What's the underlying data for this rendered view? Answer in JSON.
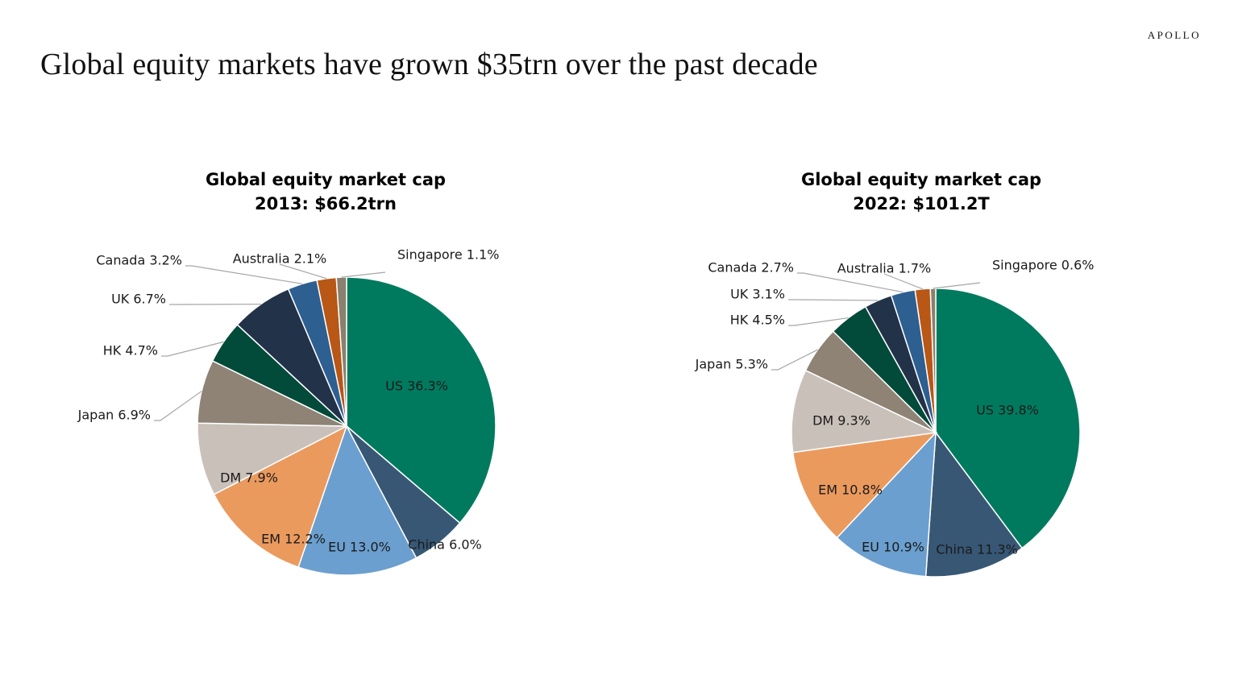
{
  "page": {
    "title": "Global equity markets have grown $35trn over the past decade",
    "logo": "APOLLO"
  },
  "chart_data": [
    {
      "type": "pie",
      "title_line1": "Global equity market cap",
      "title_line2": "2013: $66.2trn",
      "slices": [
        {
          "name": "US",
          "value": 36.3,
          "label": "US 36.3%",
          "color": "#007a5e"
        },
        {
          "name": "China",
          "value": 6.0,
          "label": "China 6.0%",
          "color": "#375775"
        },
        {
          "name": "EU",
          "value": 13.0,
          "label": "EU 13.0%",
          "color": "#6b9fcf"
        },
        {
          "name": "EM",
          "value": 12.2,
          "label": "EM 12.2%",
          "color": "#eb9a5e"
        },
        {
          "name": "DM",
          "value": 7.9,
          "label": "DM 7.9%",
          "color": "#c9c1b9"
        },
        {
          "name": "Japan",
          "value": 6.9,
          "label": "Japan 6.9%",
          "color": "#8f8375"
        },
        {
          "name": "HK",
          "value": 4.7,
          "label": "HK 4.7%",
          "color": "#024a3a"
        },
        {
          "name": "UK",
          "value": 6.7,
          "label": "UK 6.7%",
          "color": "#223249"
        },
        {
          "name": "Canada",
          "value": 3.2,
          "label": "Canada 3.2%",
          "color": "#2d5f91"
        },
        {
          "name": "Australia",
          "value": 2.1,
          "label": "Australia 2.1%",
          "color": "#b85716"
        },
        {
          "name": "Singapore",
          "value": 1.1,
          "label": "Singapore 1.1%",
          "color": "#8a8070"
        }
      ]
    },
    {
      "type": "pie",
      "title_line1": "Global equity market cap",
      "title_line2": "2022: $101.2T",
      "slices": [
        {
          "name": "US",
          "value": 39.8,
          "label": "US 39.8%",
          "color": "#007a5e"
        },
        {
          "name": "China",
          "value": 11.3,
          "label": "China 11.3%",
          "color": "#375775"
        },
        {
          "name": "EU",
          "value": 10.9,
          "label": "EU 10.9%",
          "color": "#6b9fcf"
        },
        {
          "name": "EM",
          "value": 10.8,
          "label": "EM 10.8%",
          "color": "#eb9a5e"
        },
        {
          "name": "DM",
          "value": 9.3,
          "label": "DM 9.3%",
          "color": "#c9c1b9"
        },
        {
          "name": "Japan",
          "value": 5.3,
          "label": "Japan 5.3%",
          "color": "#8f8375"
        },
        {
          "name": "HK",
          "value": 4.5,
          "label": "HK 4.5%",
          "color": "#024a3a"
        },
        {
          "name": "UK",
          "value": 3.1,
          "label": "UK 3.1%",
          "color": "#223249"
        },
        {
          "name": "Canada",
          "value": 2.7,
          "label": "Canada 2.7%",
          "color": "#2d5f91"
        },
        {
          "name": "Australia",
          "value": 1.7,
          "label": "Australia 1.7%",
          "color": "#b85716"
        },
        {
          "name": "Singapore",
          "value": 0.6,
          "label": "Singapore 0.6%",
          "color": "#8a8070"
        }
      ]
    }
  ]
}
